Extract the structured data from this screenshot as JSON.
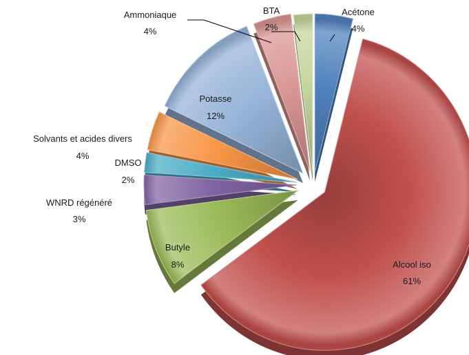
{
  "chart_data": {
    "type": "pie",
    "title": "",
    "legend": "none",
    "slices": [
      {
        "label": "Acétone",
        "percent_label": "4%",
        "value": 4,
        "color": "#4f81bd"
      },
      {
        "label": "Alcool iso",
        "percent_label": "61%",
        "value": 61,
        "color": "#c0504d"
      },
      {
        "label": "Butyle",
        "percent_label": "8%",
        "value": 8,
        "color": "#9bbb59"
      },
      {
        "label": "WNRD régénéré",
        "percent_label": "3%",
        "value": 3,
        "color": "#8064a2"
      },
      {
        "label": "DMSO",
        "percent_label": "2%",
        "value": 2,
        "color": "#4bacc6"
      },
      {
        "label": "Solvants et acides divers",
        "percent_label": "4%",
        "value": 4,
        "color": "#f79646"
      },
      {
        "label": "Potasse",
        "percent_label": "12%",
        "value": 12,
        "color": "#95b3d7"
      },
      {
        "label": "Ammoniaque",
        "percent_label": "4%",
        "value": 4,
        "color": "#d99694"
      },
      {
        "label": "BTA",
        "percent_label": "2%",
        "value": 2,
        "color": "#c3d69b"
      }
    ]
  }
}
